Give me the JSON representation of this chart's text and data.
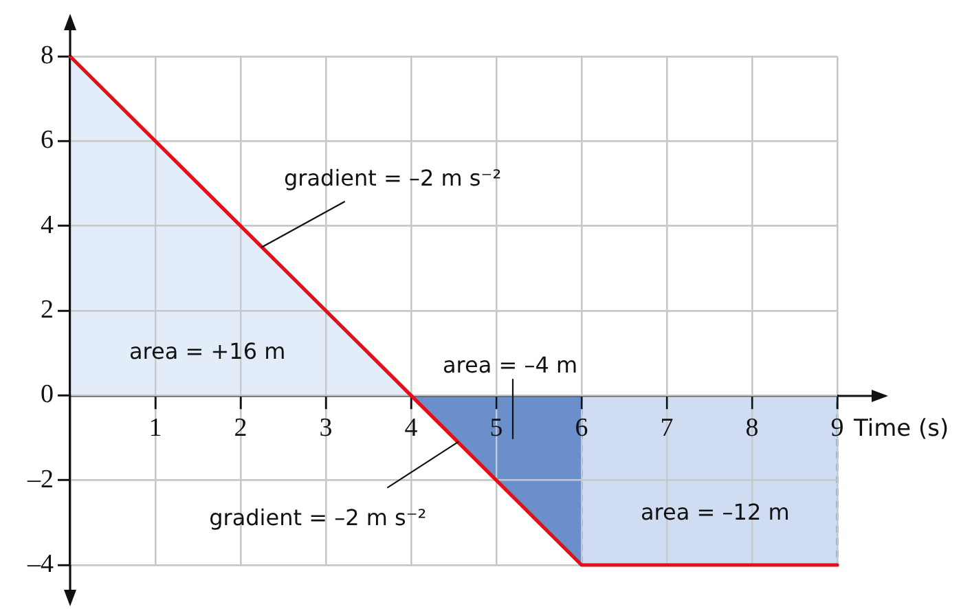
{
  "chart_data": {
    "type": "line",
    "xlabel": "Time (s)",
    "xlim": [
      0,
      9
    ],
    "xticks": [
      1,
      2,
      3,
      4,
      5,
      6,
      7,
      8,
      9
    ],
    "ylim": [
      -4,
      8
    ],
    "yticks": [
      {
        "value": -4,
        "label": "–4"
      },
      {
        "value": -2,
        "label": "–2"
      },
      0,
      2,
      4,
      6,
      8
    ],
    "grid": true,
    "marker": "none",
    "series": [
      {
        "type": "area",
        "color": "#e3edf9",
        "x": [
          0,
          4
        ],
        "values": [
          8,
          0
        ]
      },
      {
        "type": "area",
        "color": "#6a8fca",
        "x": [
          4,
          6
        ],
        "values": [
          0,
          -4
        ]
      },
      {
        "type": "area",
        "color": "#cfdcf1",
        "x": [
          6,
          6,
          9,
          9
        ],
        "values": [
          0,
          -4,
          -4,
          0
        ],
        "line_style": "dashed"
      },
      {
        "type": "line",
        "color": "#e3101a",
        "x": [
          0,
          4,
          6,
          9
        ],
        "values": [
          8,
          0,
          -4,
          -4
        ]
      }
    ],
    "annotations": [
      {
        "text": "gradient = –2 m s⁻²",
        "x": 2.25,
        "y": 3.5
      },
      {
        "text": "gradient = –2 m s⁻²",
        "x": 4.55,
        "y": -1.1
      },
      "area = +16 m",
      "area = –4 m",
      "area = –12 m"
    ]
  }
}
